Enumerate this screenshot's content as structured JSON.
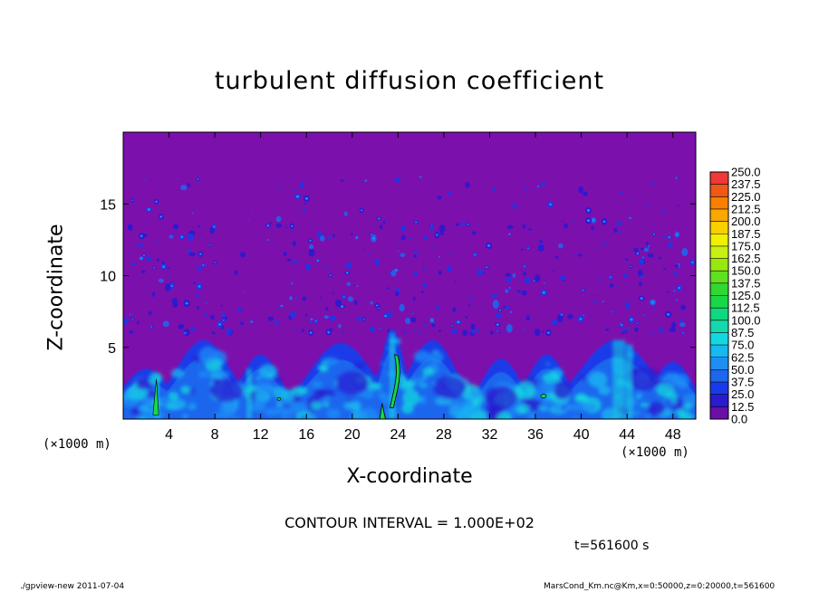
{
  "chart_data": {
    "type": "heatmap",
    "title": "turbulent diffusion coefficient",
    "xlabel": "X-coordinate",
    "ylabel": "Z-coordinate",
    "x_unit_label": "(×1000 m)",
    "y_unit_label": "(×1000 m)",
    "xlim": [
      0,
      50
    ],
    "ylim": [
      0,
      20
    ],
    "x_ticks": [
      4,
      8,
      12,
      16,
      20,
      24,
      28,
      32,
      36,
      40,
      44,
      48
    ],
    "x_tick_labels": [
      "4",
      "8",
      "12",
      "16",
      "20",
      "24",
      "28",
      "32",
      "36",
      "40",
      "44",
      "48"
    ],
    "y_ticks": [
      5,
      10,
      15
    ],
    "y_tick_labels": [
      "5",
      "10",
      "15"
    ],
    "colorbar": {
      "levels": [
        0.0,
        12.5,
        25.0,
        37.5,
        50.0,
        62.5,
        75.0,
        87.5,
        100.0,
        112.5,
        125.0,
        137.5,
        150.0,
        162.5,
        175.0,
        187.5,
        200.0,
        212.5,
        225.0,
        237.5,
        250.0
      ],
      "labels": [
        "0.0",
        "12.5",
        "25.0",
        "37.5",
        "50.0",
        "62.5",
        "75.0",
        "87.5",
        "100.0",
        "112.5",
        "125.0",
        "137.5",
        "150.0",
        "162.5",
        "175.0",
        "187.5",
        "200.0",
        "212.5",
        "225.0",
        "237.5",
        "250.0"
      ],
      "colors": [
        "#6a0fa8",
        "#2a1ad0",
        "#1a3ae8",
        "#1d66ee",
        "#1e8ef5",
        "#18b8f0",
        "#14d8e0",
        "#14d8b0",
        "#10d880",
        "#18d848",
        "#30d830",
        "#60e020",
        "#98e810",
        "#c8f010",
        "#f0f000",
        "#f8d000",
        "#f8a800",
        "#f88000",
        "#f05818",
        "#f03838",
        "#f07070"
      ]
    },
    "background_value": 0.0,
    "background_color": "#7c10ac",
    "contour_interval_text": "CONTOUR INTERVAL = 1.000E+02",
    "time_text": "t=561600 s"
  },
  "footer": {
    "left": "./gpview-new  2011-07-04",
    "right": "MarsCond_Km.nc@Km,x=0:50000,z=0:20000,t=561600"
  }
}
